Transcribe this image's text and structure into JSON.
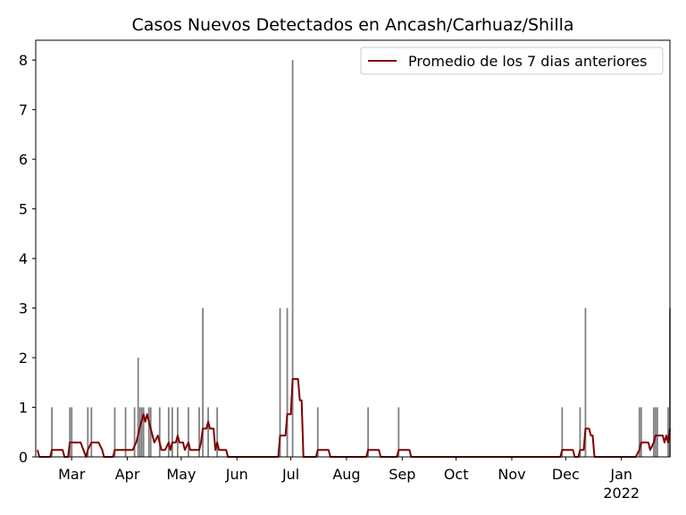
{
  "chart_data": {
    "type": "bar",
    "title": "Casos Nuevos Detectados en Ancash/Carhuaz/Shilla",
    "xlabel": "",
    "ylabel": "",
    "ylim": [
      0,
      8.4
    ],
    "yticks": [
      0,
      1,
      2,
      3,
      4,
      5,
      6,
      7,
      8
    ],
    "grid": false,
    "legend_position": "top-right",
    "x_range": [
      "2021-02-09",
      "2022-01-28"
    ],
    "xticks": [
      {
        "date": "2021-03-01",
        "label": "Mar"
      },
      {
        "date": "2021-04-01",
        "label": "Apr"
      },
      {
        "date": "2021-05-01",
        "label": "May"
      },
      {
        "date": "2021-06-01",
        "label": "Jun"
      },
      {
        "date": "2021-07-01",
        "label": "Jul"
      },
      {
        "date": "2021-08-01",
        "label": "Aug"
      },
      {
        "date": "2021-09-01",
        "label": "Sep"
      },
      {
        "date": "2021-10-01",
        "label": "Oct"
      },
      {
        "date": "2021-11-01",
        "label": "Nov"
      },
      {
        "date": "2021-12-01",
        "label": "Dec"
      },
      {
        "date": "2022-01-01",
        "label": "Jan",
        "sublabel": "2022"
      }
    ],
    "bar_color": "#808080",
    "line_color": "#800000",
    "series": [
      {
        "type": "bar",
        "points": [
          [
            "2021-02-18",
            1
          ],
          [
            "2021-02-28",
            1
          ],
          [
            "2021-03-01",
            1
          ],
          [
            "2021-03-10",
            1
          ],
          [
            "2021-03-12",
            1
          ],
          [
            "2021-03-25",
            1
          ],
          [
            "2021-03-31",
            1
          ],
          [
            "2021-04-05",
            1
          ],
          [
            "2021-04-07",
            2
          ],
          [
            "2021-04-08",
            1
          ],
          [
            "2021-04-09",
            1
          ],
          [
            "2021-04-10",
            1
          ],
          [
            "2021-04-13",
            1
          ],
          [
            "2021-04-14",
            1
          ],
          [
            "2021-04-19",
            1
          ],
          [
            "2021-04-24",
            1
          ],
          [
            "2021-04-26",
            1
          ],
          [
            "2021-04-29",
            1
          ],
          [
            "2021-05-05",
            1
          ],
          [
            "2021-05-11",
            1
          ],
          [
            "2021-05-13",
            3
          ],
          [
            "2021-05-16",
            1
          ],
          [
            "2021-05-21",
            1
          ],
          [
            "2021-06-25",
            3
          ],
          [
            "2021-06-29",
            3
          ],
          [
            "2021-07-02",
            8
          ],
          [
            "2021-07-16",
            1
          ],
          [
            "2021-08-13",
            1
          ],
          [
            "2021-08-30",
            1
          ],
          [
            "2021-11-29",
            1
          ],
          [
            "2021-12-09",
            1
          ],
          [
            "2021-12-12",
            3
          ],
          [
            "2022-01-11",
            1
          ],
          [
            "2022-01-12",
            1
          ],
          [
            "2022-01-19",
            1
          ],
          [
            "2022-01-20",
            1
          ],
          [
            "2022-01-21",
            1
          ],
          [
            "2022-01-27",
            1
          ],
          [
            "2022-01-28",
            3
          ]
        ]
      },
      {
        "type": "line",
        "name": "Promedio de los 7 dias anteriores",
        "points": [
          [
            "2021-02-10",
            0.14
          ],
          [
            "2021-02-11",
            0
          ],
          [
            "2021-02-17",
            0
          ],
          [
            "2021-02-18",
            0.14
          ],
          [
            "2021-02-24",
            0.14
          ],
          [
            "2021-02-25",
            0
          ],
          [
            "2021-02-27",
            0
          ],
          [
            "2021-02-28",
            0.29
          ],
          [
            "2021-03-06",
            0.29
          ],
          [
            "2021-03-09",
            0
          ],
          [
            "2021-03-10",
            0.14
          ],
          [
            "2021-03-12",
            0.29
          ],
          [
            "2021-03-16",
            0.29
          ],
          [
            "2021-03-18",
            0.14
          ],
          [
            "2021-03-19",
            0
          ],
          [
            "2021-03-24",
            0
          ],
          [
            "2021-03-25",
            0.14
          ],
          [
            "2021-04-04",
            0.14
          ],
          [
            "2021-04-06",
            0.3
          ],
          [
            "2021-04-08",
            0.6
          ],
          [
            "2021-04-10",
            0.86
          ],
          [
            "2021-04-11",
            0.71
          ],
          [
            "2021-04-12",
            0.86
          ],
          [
            "2021-04-14",
            0.57
          ],
          [
            "2021-04-16",
            0.29
          ],
          [
            "2021-04-18",
            0.43
          ],
          [
            "2021-04-20",
            0.14
          ],
          [
            "2021-04-22",
            0.14
          ],
          [
            "2021-04-24",
            0.29
          ],
          [
            "2021-04-25",
            0.14
          ],
          [
            "2021-04-26",
            0.29
          ],
          [
            "2021-04-28",
            0.29
          ],
          [
            "2021-04-29",
            0.43
          ],
          [
            "2021-04-30",
            0.29
          ],
          [
            "2021-05-02",
            0.29
          ],
          [
            "2021-05-03",
            0.14
          ],
          [
            "2021-05-05",
            0.29
          ],
          [
            "2021-05-06",
            0.14
          ],
          [
            "2021-05-11",
            0.14
          ],
          [
            "2021-05-12",
            0.29
          ],
          [
            "2021-05-13",
            0.57
          ],
          [
            "2021-05-15",
            0.57
          ],
          [
            "2021-05-16",
            0.71
          ],
          [
            "2021-05-17",
            0.57
          ],
          [
            "2021-05-19",
            0.57
          ],
          [
            "2021-05-20",
            0.14
          ],
          [
            "2021-05-21",
            0.29
          ],
          [
            "2021-05-22",
            0.14
          ],
          [
            "2021-05-26",
            0.14
          ],
          [
            "2021-05-27",
            0
          ],
          [
            "2021-06-24",
            0
          ],
          [
            "2021-06-25",
            0.43
          ],
          [
            "2021-06-28",
            0.43
          ],
          [
            "2021-06-29",
            0.86
          ],
          [
            "2021-07-01",
            0.86
          ],
          [
            "2021-07-02",
            1.57
          ],
          [
            "2021-07-05",
            1.57
          ],
          [
            "2021-07-06",
            1.14
          ],
          [
            "2021-07-07",
            1.14
          ],
          [
            "2021-07-08",
            0
          ],
          [
            "2021-07-15",
            0
          ],
          [
            "2021-07-16",
            0.14
          ],
          [
            "2021-07-22",
            0.14
          ],
          [
            "2021-07-23",
            0
          ],
          [
            "2021-08-12",
            0
          ],
          [
            "2021-08-13",
            0.14
          ],
          [
            "2021-08-19",
            0.14
          ],
          [
            "2021-08-20",
            0
          ],
          [
            "2021-08-29",
            0
          ],
          [
            "2021-08-30",
            0.14
          ],
          [
            "2021-09-05",
            0.14
          ],
          [
            "2021-09-06",
            0
          ],
          [
            "2021-11-28",
            0
          ],
          [
            "2021-11-29",
            0.14
          ],
          [
            "2021-12-05",
            0.14
          ],
          [
            "2021-12-06",
            0
          ],
          [
            "2021-12-08",
            0
          ],
          [
            "2021-12-09",
            0.14
          ],
          [
            "2021-12-11",
            0.14
          ],
          [
            "2021-12-12",
            0.57
          ],
          [
            "2021-12-14",
            0.57
          ],
          [
            "2021-12-15",
            0.43
          ],
          [
            "2021-12-16",
            0.43
          ],
          [
            "2021-12-17",
            0
          ],
          [
            "2022-01-09",
            0
          ],
          [
            "2022-01-11",
            0.14
          ],
          [
            "2022-01-12",
            0.29
          ],
          [
            "2022-01-16",
            0.29
          ],
          [
            "2022-01-17",
            0.14
          ],
          [
            "2022-01-19",
            0.29
          ],
          [
            "2022-01-20",
            0.43
          ],
          [
            "2022-01-24",
            0.43
          ],
          [
            "2022-01-25",
            0.29
          ],
          [
            "2022-01-26",
            0.43
          ],
          [
            "2022-01-27",
            0.29
          ],
          [
            "2022-01-28",
            0.57
          ]
        ]
      }
    ]
  }
}
